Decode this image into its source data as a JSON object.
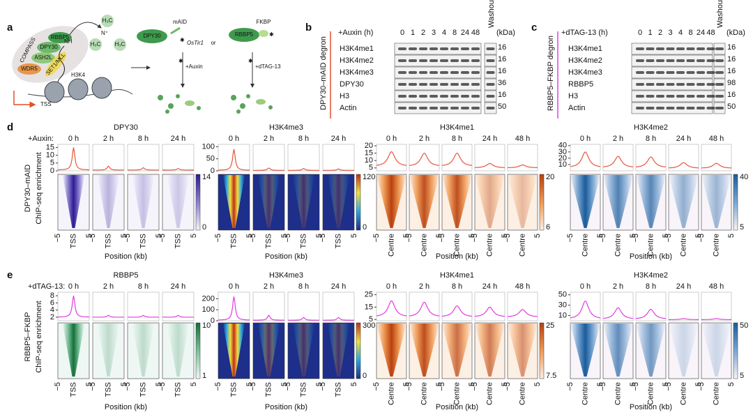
{
  "panel_a": {
    "label": "a",
    "compass": "COMPASS",
    "rbbp5": "RBBP5",
    "dpy30": "DPY30",
    "ash2l": "ASH2L",
    "wdr5": "WDR5",
    "set1": "SET1/MLL",
    "nh": "NH",
    "n": "N⁺",
    "methyl": [
      "H₃C",
      "H₃C",
      "H₃C"
    ],
    "h3k4": "H3K4",
    "tss": "TSS",
    "dpy30_fusion": "DPY30",
    "maid": "mAID",
    "ostir1": "OsTir1",
    "or": "or",
    "rbbp5_fusion": "RBBP5",
    "fkbp": "FKBP",
    "auxin": "+Auxin",
    "dtag": "+dTAG-13"
  },
  "panel_b": {
    "label": "b",
    "side": "DPY30–mAID degron",
    "treatment": "+Auxin (h)",
    "timepoints": [
      "0",
      "1",
      "2",
      "3",
      "4",
      "8",
      "24",
      "48"
    ],
    "washout": "Washout",
    "kda": "(kDa)",
    "rows": [
      {
        "name": "H3K4me1",
        "kda": "16"
      },
      {
        "name": "H3K4me2",
        "kda": "16"
      },
      {
        "name": "H3K4me3",
        "kda": "16"
      },
      {
        "name": "DPY30",
        "kda": "36"
      },
      {
        "name": "H3",
        "kda": "16"
      },
      {
        "name": "Actin",
        "kda": "50"
      }
    ]
  },
  "panel_c": {
    "label": "c",
    "side": "RBBP5–FKBP degron",
    "treatment": "+dTAG-13 (h)",
    "timepoints": [
      "0",
      "1",
      "2",
      "3",
      "4",
      "8",
      "24",
      "48"
    ],
    "washout": "Washout",
    "kda": "(kDa)",
    "rows": [
      {
        "name": "H3K4me1",
        "kda": "16"
      },
      {
        "name": "H3K4me2",
        "kda": "16"
      },
      {
        "name": "H3K4me3",
        "kda": "16"
      },
      {
        "name": "RBBP5",
        "kda": "98"
      },
      {
        "name": "H3",
        "kda": "16"
      },
      {
        "name": "Actin",
        "kda": "50"
      }
    ]
  },
  "panel_d": {
    "label": "d",
    "treatment": "+Auxin:",
    "row_label": "DPY30–mAID",
    "y_label": "ChIP-seq enrichment",
    "line_color": "#e8553c",
    "groups": [
      {
        "title": "DPY30",
        "times": [
          "0 h",
          "2 h",
          "8 h",
          "24 h"
        ],
        "ylim": [
          0,
          17
        ],
        "yticks": [
          0,
          5,
          10,
          15
        ],
        "peak_values": [
          15,
          3,
          2,
          1.5
        ],
        "edge_values": [
          0.5,
          0.5,
          0.5,
          0.5
        ],
        "cbar_ticks": [
          0,
          14
        ],
        "xticklabels": [
          "−5",
          "TSS",
          "5"
        ],
        "xlabel": "Position (kb)",
        "colormap": "purple"
      },
      {
        "title": "H3K4me3",
        "times": [
          "0 h",
          "2 h",
          "8 h",
          "24 h"
        ],
        "ylim": [
          0,
          110
        ],
        "yticks": [
          0,
          50,
          100
        ],
        "peak_values": [
          90,
          12,
          10,
          8
        ],
        "edge_values": [
          2,
          2,
          2,
          2
        ],
        "cbar_ticks": [
          0,
          120
        ],
        "xticklabels": [
          "−5",
          "TSS",
          "5"
        ],
        "xlabel": "Position (kb)",
        "colormap": "jet"
      },
      {
        "title": "H3K4me1",
        "times": [
          "0 h",
          "2 h",
          "8 h",
          "24 h",
          "48 h"
        ],
        "ylim": [
          3,
          21
        ],
        "yticks": [
          5,
          10,
          15,
          20
        ],
        "peak_values": [
          16,
          15,
          15,
          8,
          7
        ],
        "edge_values": [
          6,
          6,
          6,
          5,
          5
        ],
        "cbar_ticks": [
          6,
          20
        ],
        "xticklabels": [
          "−5",
          "Centre",
          "5"
        ],
        "xlabel": "Position (kb)",
        "colormap": "orange"
      },
      {
        "title": "H3K4me2",
        "times": [
          "0 h",
          "2 h",
          "8 h",
          "24 h",
          "48 h"
        ],
        "ylim": [
          0,
          42
        ],
        "yticks": [
          10,
          20,
          30,
          40
        ],
        "peak_values": [
          30,
          23,
          22,
          13,
          12
        ],
        "edge_values": [
          5,
          5,
          5,
          4,
          4
        ],
        "cbar_ticks": [
          5,
          40
        ],
        "xticklabels": [
          "−5",
          "Centre",
          "5"
        ],
        "xlabel": "Position (kb)",
        "colormap": "blue"
      }
    ]
  },
  "panel_e": {
    "label": "e",
    "treatment": "+dTAG-13:",
    "row_label": "RBBP5–FKBP",
    "y_label": "ChIP-seq enrichment",
    "line_color": "#e03ce0",
    "groups": [
      {
        "title": "RBBP5",
        "times": [
          "0 h",
          "2 h",
          "8 h",
          "24 h"
        ],
        "ylim": [
          1,
          9
        ],
        "yticks": [
          2,
          4,
          6,
          8
        ],
        "peak_values": [
          8,
          2.5,
          2.5,
          2.5
        ],
        "edge_values": [
          2,
          2,
          2,
          2
        ],
        "cbar_ticks": [
          1,
          10
        ],
        "xticklabels": [
          "−5",
          "TSS",
          "5"
        ],
        "xlabel": "Position (kb)",
        "colormap": "green"
      },
      {
        "title": "H3K4me3",
        "times": [
          "0 h",
          "2 h",
          "8 h",
          "24 h"
        ],
        "ylim": [
          0,
          260
        ],
        "yticks": [
          0,
          100,
          200
        ],
        "peak_values": [
          220,
          50,
          30,
          30
        ],
        "edge_values": [
          5,
          5,
          5,
          5
        ],
        "cbar_ticks": [
          0,
          300
        ],
        "xticklabels": [
          "−5",
          "TSS",
          "5"
        ],
        "xlabel": "Position (kb)",
        "colormap": "jet"
      },
      {
        "title": "H3K4me1",
        "times": [
          "0 h",
          "2 h",
          "8 h",
          "24 h",
          "48 h"
        ],
        "ylim": [
          4,
          27
        ],
        "yticks": [
          5,
          15,
          25
        ],
        "peak_values": [
          20,
          19,
          16,
          15,
          13
        ],
        "edge_values": [
          7,
          7,
          7,
          7,
          7
        ],
        "cbar_ticks": [
          7.5,
          25
        ],
        "xticklabels": [
          "−5",
          "Centre",
          "5"
        ],
        "xlabel": "Position (kb)",
        "colormap": "orange"
      },
      {
        "title": "H3K4me2",
        "times": [
          "0 h",
          "2 h",
          "8 h",
          "24 h",
          "48 h"
        ],
        "ylim": [
          0,
          55
        ],
        "yticks": [
          10,
          30,
          50
        ],
        "peak_values": [
          38,
          25,
          22,
          4,
          4
        ],
        "edge_values": [
          3,
          3,
          3,
          2,
          2
        ],
        "cbar_ticks": [
          5,
          50
        ],
        "xticklabels": [
          "−5",
          "Centre",
          "5"
        ],
        "xlabel": "Position (kb)",
        "colormap": "blue"
      }
    ]
  }
}
